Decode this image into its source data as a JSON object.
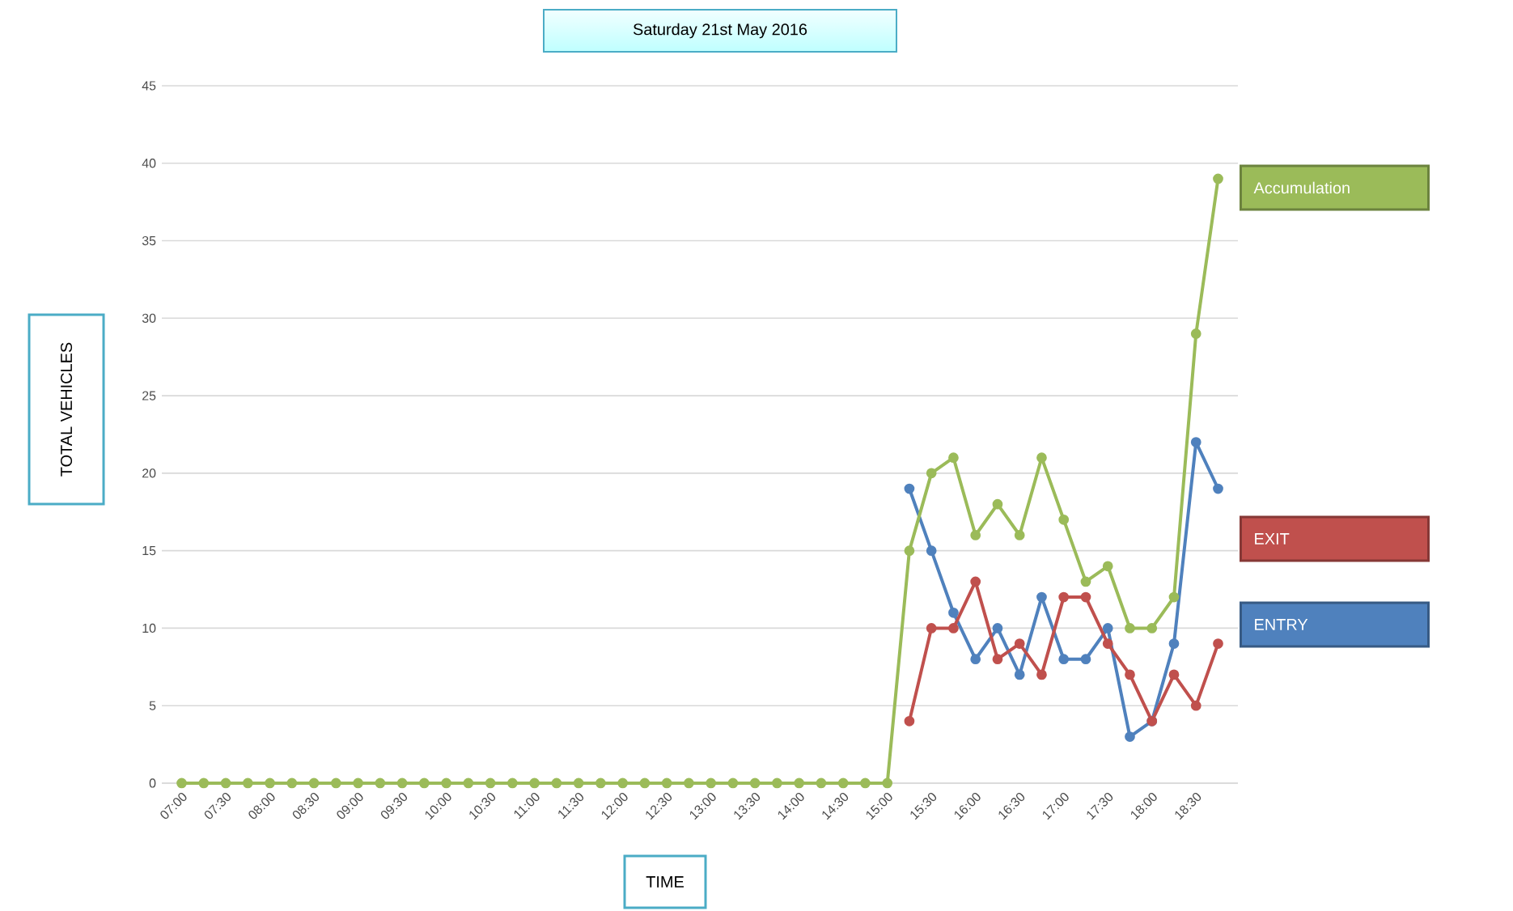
{
  "chart_data": {
    "type": "line",
    "title": "Saturday  21st May 2016",
    "xlabel": "TIME",
    "ylabel": "TOTAL VEHICLES",
    "categories": [
      "07:00",
      null,
      "07:30",
      null,
      "08:00",
      null,
      "08:30",
      null,
      "09:00",
      null,
      "09:30",
      null,
      "10:00",
      null,
      "10:30",
      null,
      "11:00",
      null,
      "11:30",
      null,
      "12:00",
      null,
      "12:30",
      null,
      "13:00",
      null,
      "13:30",
      null,
      "14:00",
      null,
      "14:30",
      null,
      "15:00",
      null,
      "15:30",
      null,
      "16:00",
      null,
      "16:30",
      null,
      "17:00",
      null,
      "17:30",
      null,
      "18:00",
      null,
      "18:30",
      null
    ],
    "series": [
      {
        "name": "ENTRY",
        "color": "#4f81bd",
        "values": [
          null,
          null,
          null,
          null,
          null,
          null,
          null,
          null,
          null,
          null,
          null,
          null,
          null,
          null,
          null,
          null,
          null,
          null,
          null,
          null,
          null,
          null,
          null,
          null,
          null,
          null,
          null,
          null,
          null,
          null,
          null,
          null,
          null,
          19,
          15,
          11,
          8,
          10,
          7,
          12,
          8,
          8,
          10,
          3,
          4,
          9,
          22,
          19
        ]
      },
      {
        "name": "EXIT",
        "color": "#c0504d",
        "values": [
          null,
          null,
          null,
          null,
          null,
          null,
          null,
          null,
          null,
          null,
          null,
          null,
          null,
          null,
          null,
          null,
          null,
          null,
          null,
          null,
          null,
          null,
          null,
          null,
          null,
          null,
          null,
          null,
          null,
          null,
          null,
          null,
          null,
          4,
          10,
          10,
          13,
          8,
          9,
          7,
          12,
          12,
          9,
          7,
          4,
          7,
          5,
          9
        ]
      },
      {
        "name": "Accumulation",
        "color": "#9bbb59",
        "values": [
          0,
          0,
          0,
          0,
          0,
          0,
          0,
          0,
          0,
          0,
          0,
          0,
          0,
          0,
          0,
          0,
          0,
          0,
          0,
          0,
          0,
          0,
          0,
          0,
          0,
          0,
          0,
          0,
          0,
          0,
          0,
          0,
          0,
          15,
          20,
          21,
          16,
          18,
          16,
          21,
          17,
          13,
          14,
          10,
          10,
          12,
          29,
          39
        ]
      }
    ],
    "ylim": [
      0,
      45
    ],
    "yticks": [
      0,
      5,
      10,
      15,
      20,
      25,
      30,
      35,
      40,
      45
    ],
    "grid": "y",
    "legend": "right",
    "marker": "circle",
    "line_style": "solid"
  }
}
